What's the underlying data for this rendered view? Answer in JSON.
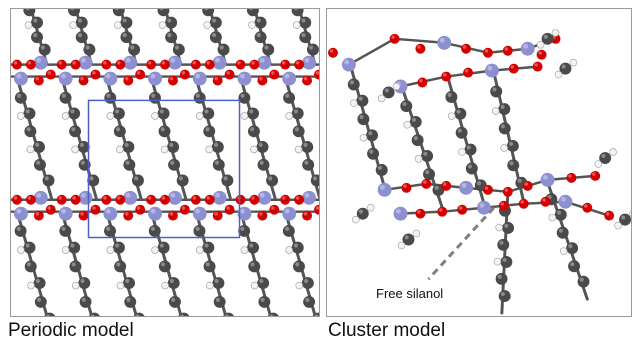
{
  "panels": {
    "left": {
      "caption": "Periodic model"
    },
    "right": {
      "caption": "Cluster model",
      "annotation": "Free silanol"
    }
  },
  "colors": {
    "silicon": "#8c8fd0",
    "oxygen": "#d40000",
    "carbon": "#4a4a4a",
    "hydrogen": "#f2f2f2",
    "bond": "#555555",
    "cell": "#4a62c8",
    "border": "#9a9a9a",
    "annotation_line": "#808080"
  }
}
